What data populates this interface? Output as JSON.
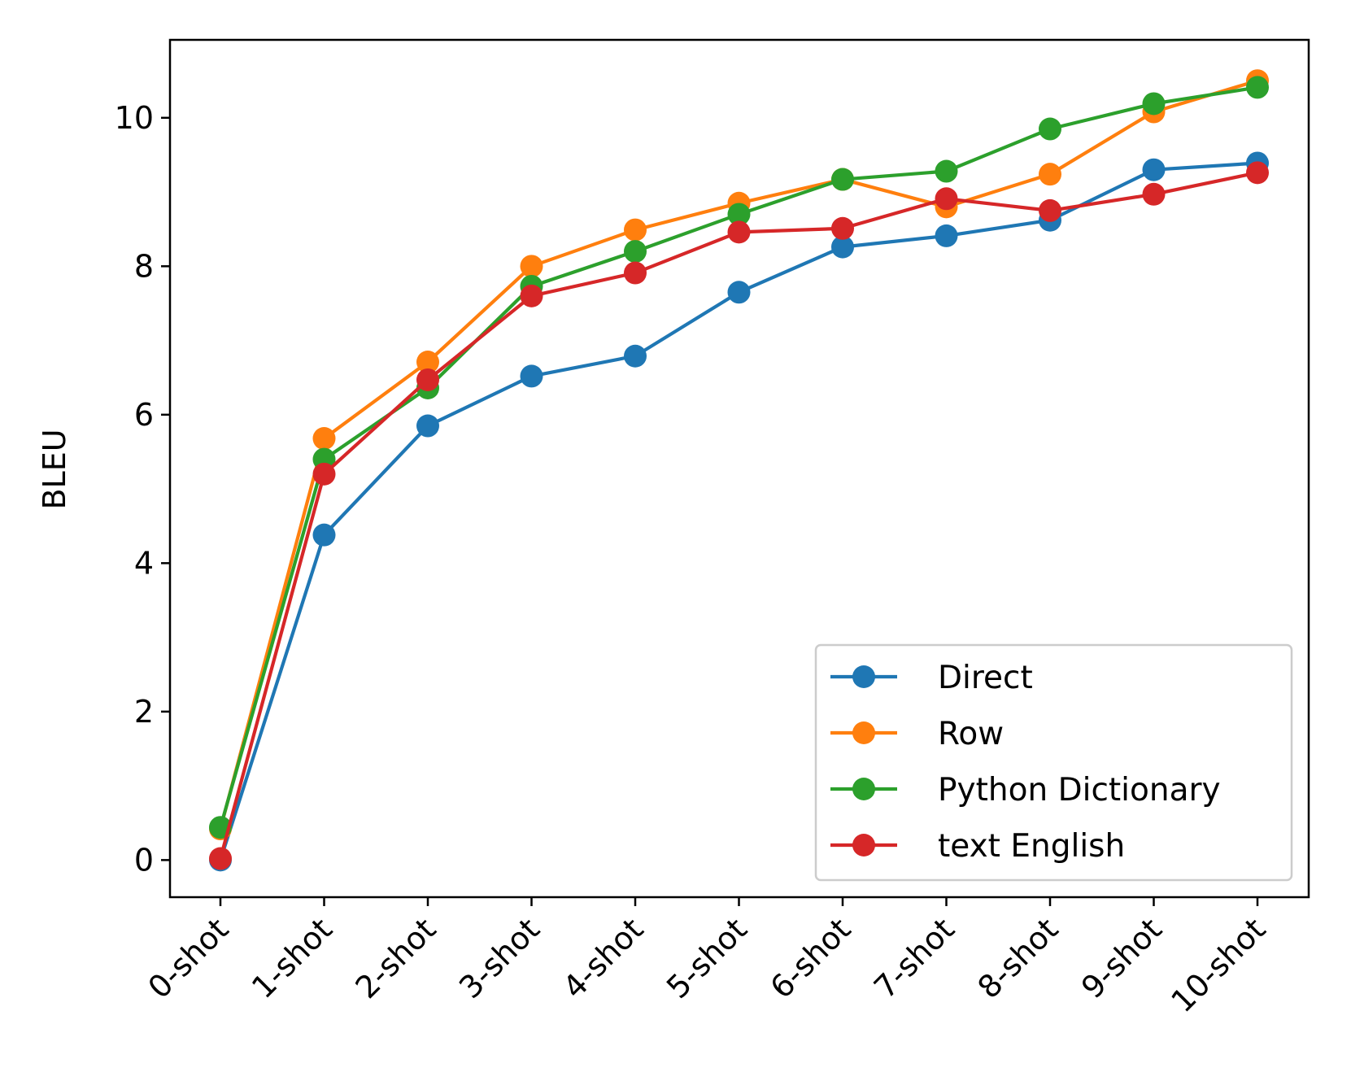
{
  "chart_data": {
    "type": "line",
    "title": "",
    "xlabel": "",
    "ylabel": "BLEU",
    "categories": [
      "0-shot",
      "1-shot",
      "2-shot",
      "3-shot",
      "4-shot",
      "5-shot",
      "6-shot",
      "7-shot",
      "8-shot",
      "9-shot",
      "10-shot"
    ],
    "ylim": [
      -0.5,
      11.05
    ],
    "yticks": [
      0,
      2,
      4,
      6,
      8,
      10
    ],
    "grid": false,
    "legend_position": "lower right",
    "series": [
      {
        "name": "Direct",
        "color": "#1f77b4",
        "marker": "circle",
        "values": [
          0.0,
          4.38,
          5.85,
          6.52,
          6.79,
          7.65,
          8.26,
          8.41,
          8.62,
          9.3,
          9.39
        ]
      },
      {
        "name": "Row",
        "color": "#ff7f0e",
        "marker": "circle",
        "values": [
          0.42,
          5.68,
          6.71,
          8.0,
          8.49,
          8.85,
          9.17,
          8.8,
          9.24,
          10.08,
          10.5
        ]
      },
      {
        "name": "Python Dictionary",
        "color": "#2ca02c",
        "marker": "circle",
        "values": [
          0.44,
          5.4,
          6.36,
          7.73,
          8.2,
          8.7,
          9.17,
          9.28,
          9.85,
          10.19,
          10.41
        ]
      },
      {
        "name": "text English",
        "color": "#d62728",
        "marker": "circle",
        "values": [
          0.02,
          5.2,
          6.47,
          7.6,
          7.91,
          8.46,
          8.51,
          8.91,
          8.75,
          8.97,
          9.26
        ]
      }
    ]
  }
}
